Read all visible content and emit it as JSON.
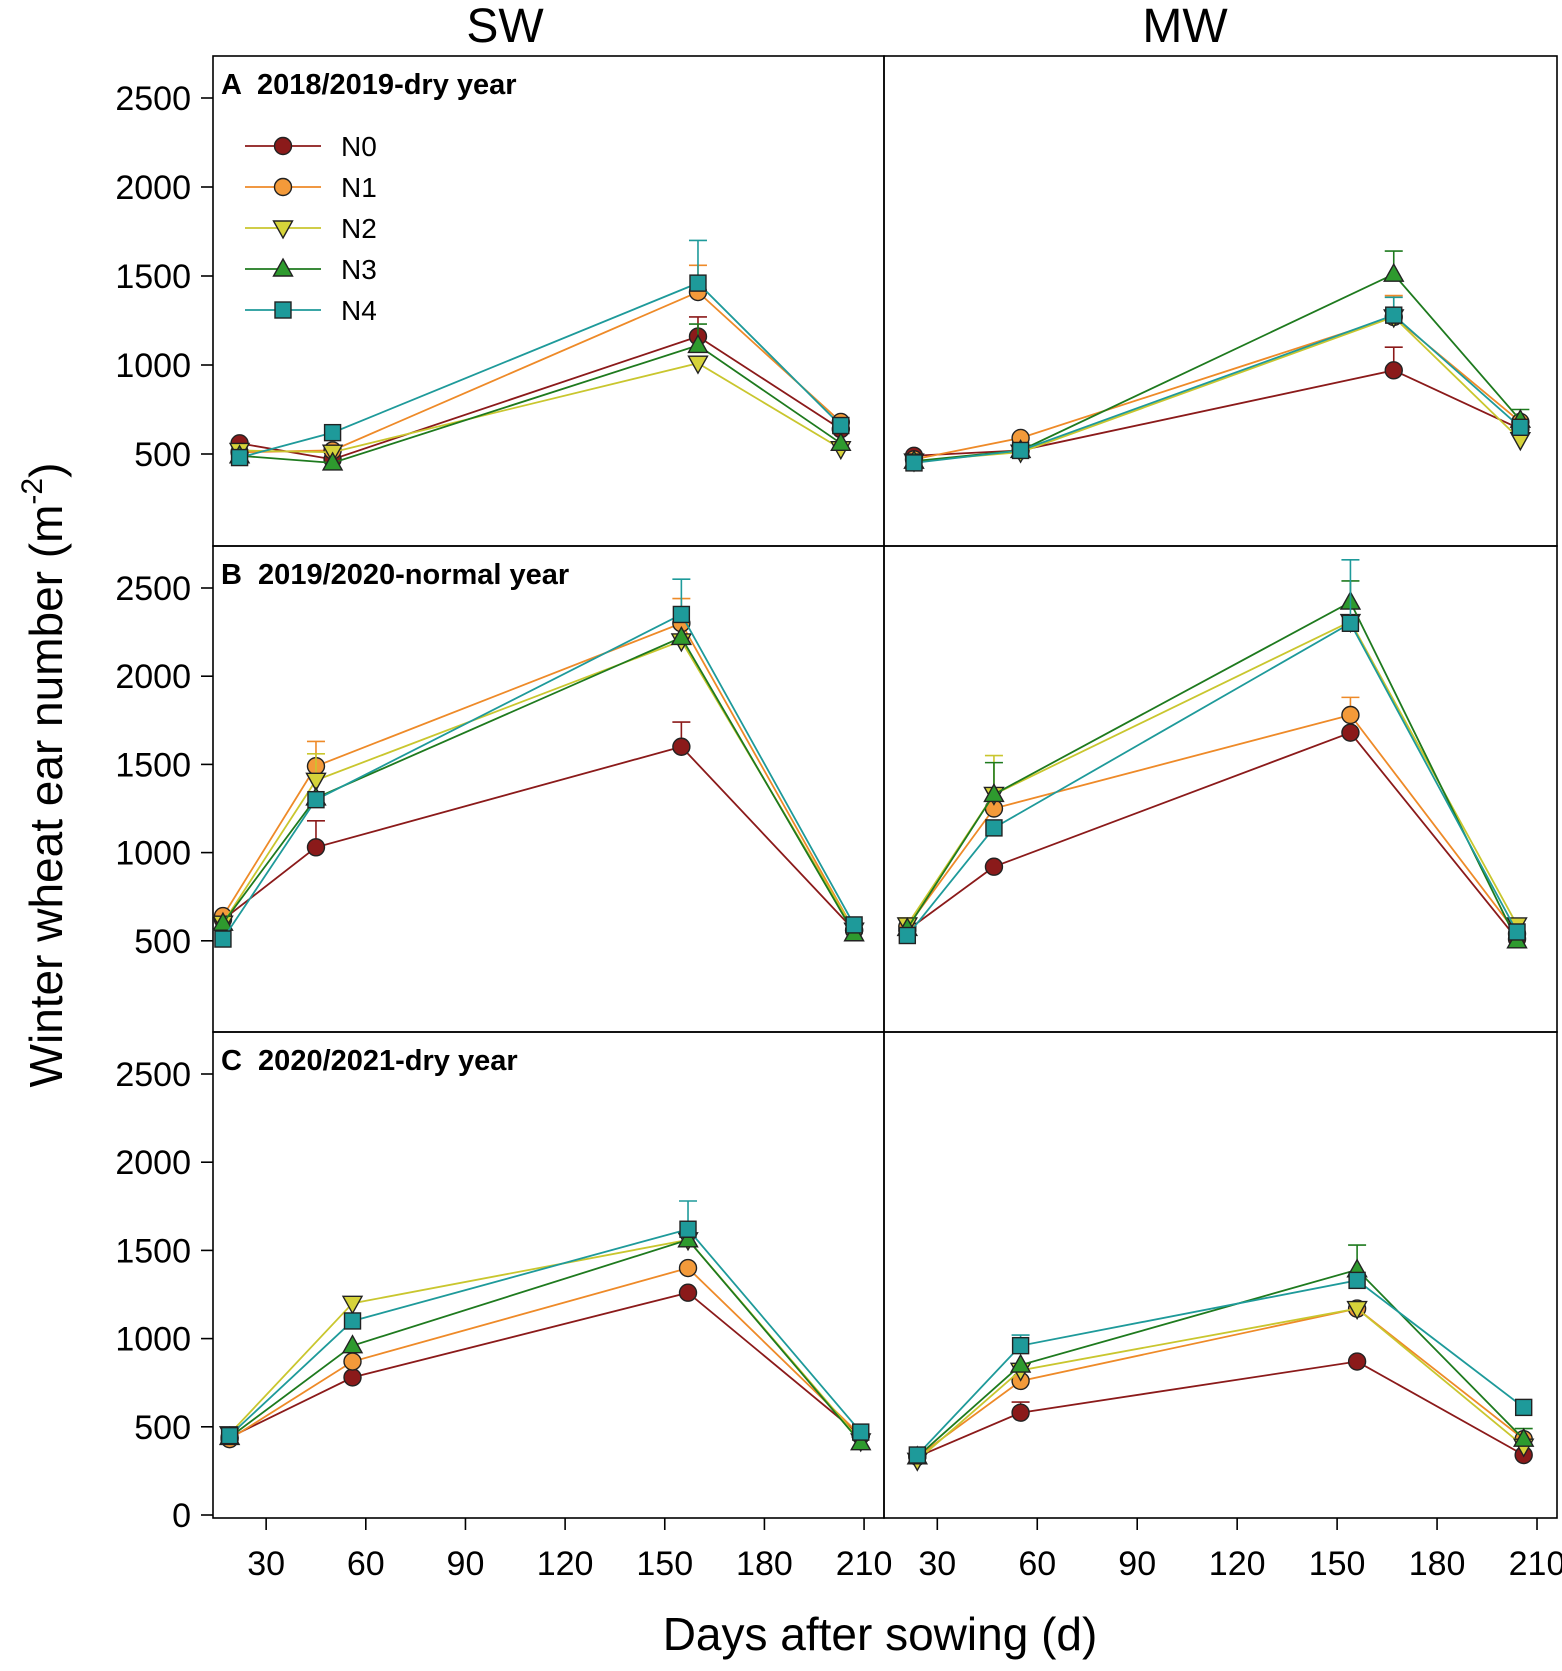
{
  "figure": {
    "columns": [
      "SW",
      "MW"
    ],
    "ylabel": "Winter wheat ear number (m",
    "ylabel_unit_sup": "-2",
    "ylabel_close": ")",
    "xlabel": "Days after sowing (d)",
    "panel_titles": [
      "A  2018/2019-dry year",
      "B  2019/2020-normal year",
      "C  2020/2021-dry year"
    ],
    "x_ticks": [
      "30",
      "60",
      "90",
      "120",
      "150",
      "180",
      "210"
    ],
    "x_tick_values": [
      30,
      60,
      90,
      120,
      150,
      180,
      210
    ],
    "xlim": [
      14,
      216
    ],
    "ylim": [
      0,
      2700
    ],
    "y_ticks_upper": [
      "500",
      "1000",
      "1500",
      "2000",
      "2500"
    ],
    "y_tick_values_upper": [
      500,
      1000,
      1500,
      2000,
      2500
    ],
    "y_ticks_bottom": [
      "0",
      "500",
      "1000",
      "1500",
      "2000",
      "2500"
    ],
    "y_tick_values_bottom": [
      0,
      500,
      1000,
      1500,
      2000,
      2500
    ]
  },
  "legend": [
    {
      "label": "N0",
      "marker": "circle",
      "color": "#8B1A1A",
      "line": "#8B1A1A"
    },
    {
      "label": "N1",
      "marker": "circle",
      "color": "#F39A3A",
      "line": "#EE8A28"
    },
    {
      "label": "N2",
      "marker": "triangle-down",
      "color": "#D6D33A",
      "line": "#C9C62E"
    },
    {
      "label": "N3",
      "marker": "triangle-up",
      "color": "#2E9A2E",
      "line": "#1E7A1E"
    },
    {
      "label": "N4",
      "marker": "square",
      "color": "#1E9A9A",
      "line": "#1E9A9A"
    }
  ],
  "chart_data": [
    {
      "type": "line",
      "title": "2018/2019-dry year",
      "label": "A",
      "column": "SW",
      "x": [
        22,
        50,
        160,
        203
      ],
      "series": [
        {
          "name": "N0",
          "values": [
            560,
            470,
            1160,
            640
          ],
          "err": [
            0,
            0,
            110,
            0
          ]
        },
        {
          "name": "N1",
          "values": [
            510,
            520,
            1410,
            680
          ],
          "err": [
            0,
            0,
            150,
            0
          ]
        },
        {
          "name": "N2",
          "values": [
            520,
            510,
            1010,
            530
          ],
          "err": [
            0,
            0,
            0,
            0
          ]
        },
        {
          "name": "N3",
          "values": [
            490,
            450,
            1110,
            560
          ],
          "err": [
            0,
            0,
            120,
            0
          ]
        },
        {
          "name": "N4",
          "values": [
            480,
            620,
            1460,
            660
          ],
          "err": [
            0,
            0,
            240,
            0
          ]
        }
      ]
    },
    {
      "type": "line",
      "title": "2018/2019-dry year",
      "label": "A",
      "column": "MW",
      "x": [
        23,
        55,
        167,
        205
      ],
      "series": [
        {
          "name": "N0",
          "values": [
            490,
            520,
            970,
            640
          ],
          "err": [
            0,
            0,
            130,
            0
          ]
        },
        {
          "name": "N1",
          "values": [
            470,
            590,
            1270,
            680
          ],
          "err": [
            0,
            0,
            120,
            0
          ]
        },
        {
          "name": "N2",
          "values": [
            460,
            510,
            1270,
            580
          ],
          "err": [
            0,
            0,
            0,
            0
          ]
        },
        {
          "name": "N3",
          "values": [
            460,
            520,
            1510,
            690
          ],
          "err": [
            0,
            0,
            130,
            60
          ]
        },
        {
          "name": "N4",
          "values": [
            450,
            520,
            1280,
            650
          ],
          "err": [
            0,
            0,
            100,
            0
          ]
        }
      ]
    },
    {
      "type": "line",
      "title": "2019/2020-normal year",
      "label": "B",
      "column": "SW",
      "x": [
        17,
        45,
        155,
        207
      ],
      "series": [
        {
          "name": "N0",
          "values": [
            620,
            1030,
            1600,
            560
          ],
          "err": [
            0,
            150,
            140,
            0
          ]
        },
        {
          "name": "N1",
          "values": [
            640,
            1490,
            2300,
            560
          ],
          "err": [
            0,
            140,
            140,
            0
          ]
        },
        {
          "name": "N2",
          "values": [
            600,
            1410,
            2200,
            560
          ],
          "err": [
            0,
            150,
            0,
            0
          ]
        },
        {
          "name": "N3",
          "values": [
            600,
            1310,
            2220,
            540
          ],
          "err": [
            0,
            0,
            0,
            0
          ]
        },
        {
          "name": "N4",
          "values": [
            510,
            1300,
            2350,
            590
          ],
          "err": [
            0,
            0,
            200,
            0
          ]
        }
      ]
    },
    {
      "type": "line",
      "title": "2019/2020-normal year",
      "label": "B",
      "column": "MW",
      "x": [
        21,
        47,
        154,
        204
      ],
      "series": [
        {
          "name": "N0",
          "values": [
            560,
            920,
            1680,
            510
          ],
          "err": [
            0,
            0,
            0,
            0
          ]
        },
        {
          "name": "N1",
          "values": [
            580,
            1250,
            1780,
            540
          ],
          "err": [
            0,
            0,
            100,
            0
          ]
        },
        {
          "name": "N2",
          "values": [
            590,
            1330,
            2310,
            590
          ],
          "err": [
            40,
            220,
            0,
            0
          ]
        },
        {
          "name": "N3",
          "values": [
            570,
            1330,
            2420,
            500
          ],
          "err": [
            0,
            180,
            120,
            0
          ]
        },
        {
          "name": "N4",
          "values": [
            530,
            1140,
            2300,
            550
          ],
          "err": [
            0,
            0,
            360,
            0
          ]
        }
      ]
    },
    {
      "type": "line",
      "title": "2020/2021-dry year",
      "label": "C",
      "column": "SW",
      "x": [
        19,
        56,
        157,
        209
      ],
      "series": [
        {
          "name": "N0",
          "values": [
            440,
            780,
            1260,
            450
          ],
          "err": [
            0,
            0,
            0,
            0
          ]
        },
        {
          "name": "N1",
          "values": [
            430,
            870,
            1400,
            450
          ],
          "err": [
            0,
            0,
            0,
            0
          ]
        },
        {
          "name": "N2",
          "values": [
            460,
            1200,
            1560,
            420
          ],
          "err": [
            0,
            30,
            0,
            0
          ]
        },
        {
          "name": "N3",
          "values": [
            440,
            960,
            1560,
            410
          ],
          "err": [
            0,
            0,
            0,
            0
          ]
        },
        {
          "name": "N4",
          "values": [
            450,
            1100,
            1620,
            470
          ],
          "err": [
            0,
            0,
            160,
            0
          ]
        }
      ]
    },
    {
      "type": "line",
      "title": "",
      "label": "",
      "column": "MW",
      "x": [
        24,
        55,
        156,
        206
      ],
      "series": [
        {
          "name": "N0",
          "values": [
            330,
            580,
            870,
            340
          ],
          "err": [
            0,
            60,
            0,
            0
          ]
        },
        {
          "name": "N1",
          "values": [
            330,
            760,
            1170,
            430
          ],
          "err": [
            0,
            0,
            0,
            0
          ]
        },
        {
          "name": "N2",
          "values": [
            310,
            820,
            1170,
            390
          ],
          "err": [
            0,
            0,
            0,
            0
          ]
        },
        {
          "name": "N3",
          "values": [
            330,
            850,
            1390,
            430
          ],
          "err": [
            0,
            0,
            140,
            60
          ]
        },
        {
          "name": "N4",
          "values": [
            340,
            960,
            1330,
            610
          ],
          "err": [
            0,
            60,
            0,
            0
          ]
        }
      ]
    }
  ]
}
